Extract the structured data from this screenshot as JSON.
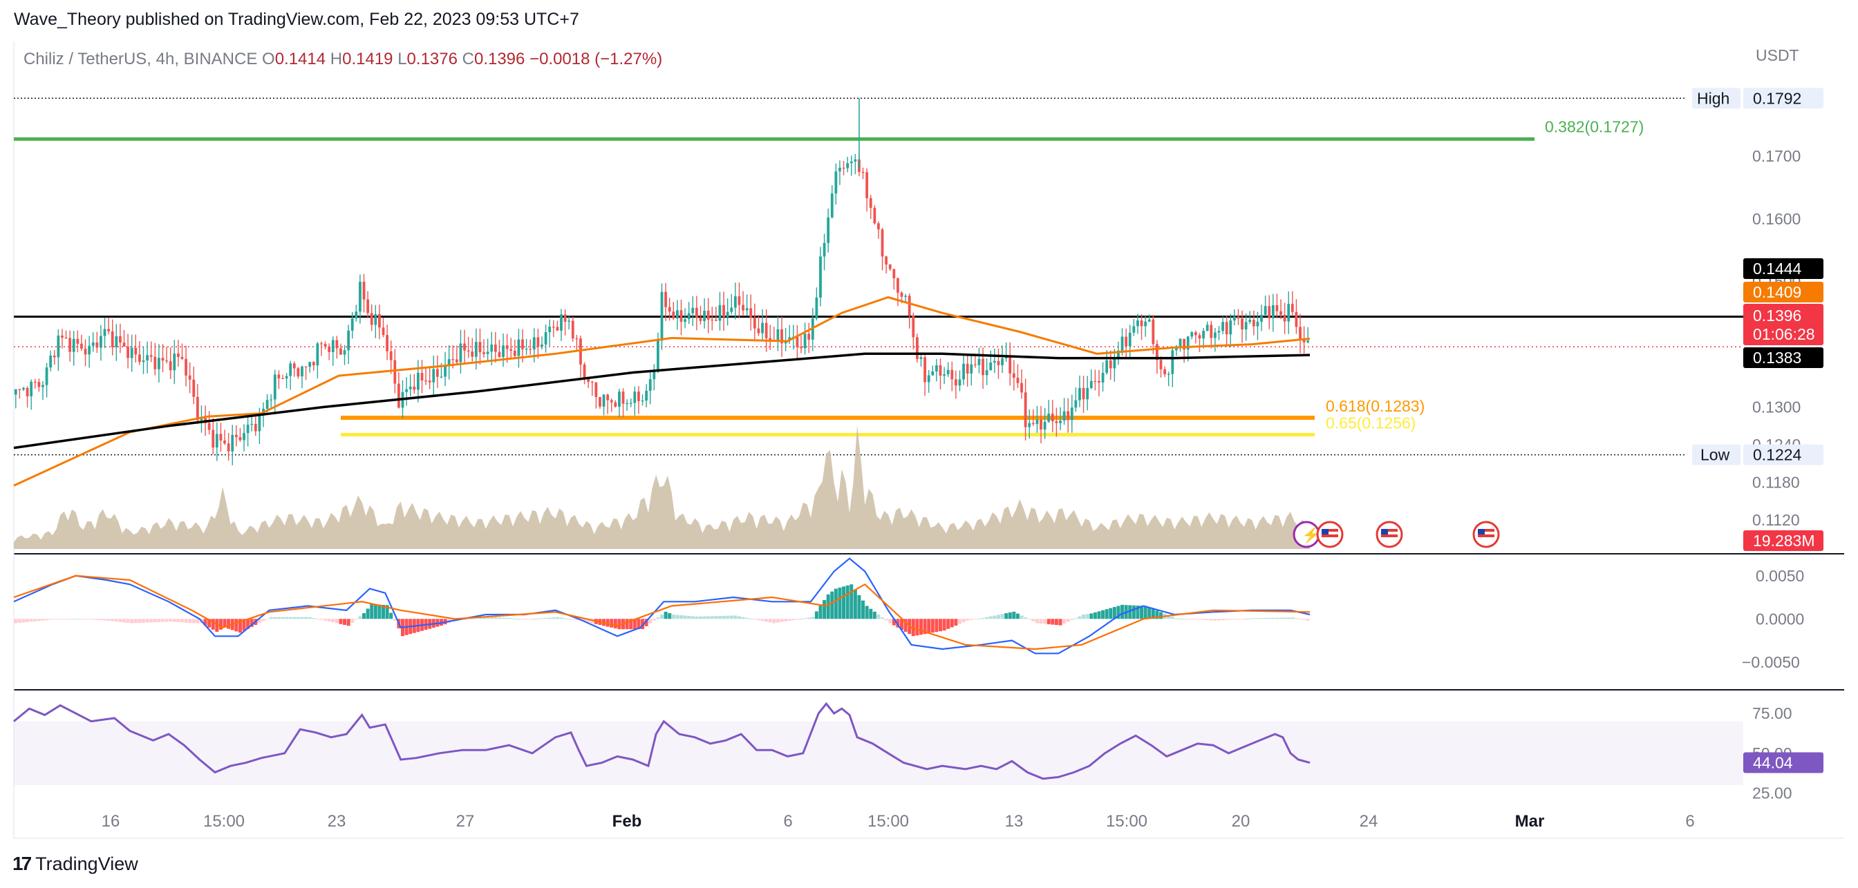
{
  "header": {
    "published": "Wave_Theory published on TradingView.com, Feb 22, 2023 09:53 UTC+7"
  },
  "legend": {
    "symbol": "Chiliz / TetherUS, 4h, BINANCE",
    "o_label": "O",
    "o": "0.1414",
    "h_label": "H",
    "h": "0.1419",
    "l_label": "L",
    "l": "0.1376",
    "c_label": "C",
    "c": "0.1396",
    "change": "−0.0018 (−1.27%)"
  },
  "footer": {
    "brand": "TradingView",
    "logo_mark": "17"
  },
  "colors": {
    "up": "#26a69a",
    "down": "#ef5350",
    "ema_fast": "#f57c00",
    "ema_slow": "#000000",
    "fib_382": "#4caf50",
    "fib_618": "#ff9800",
    "fib_65": "#ffeb3b",
    "macd_line": "#2962ff",
    "signal_line": "#ff6d00",
    "rsi": "#7e57c2",
    "vol_up": "#a5d6a7",
    "vol_down": "#f8a4a4",
    "price_tag": "#f23645"
  },
  "chart_data": [
    {
      "type": "candlestick",
      "pane": "price",
      "currency": "USDT",
      "y_ticks": [
        "0.1792",
        "0.1700",
        "0.1600",
        "0.1500",
        "0.1444",
        "0.1409",
        "0.1396",
        "0.1383",
        "0.1300",
        "0.1240",
        "0.1224",
        "0.1180",
        "0.1120"
      ],
      "y_range": [
        0.1085,
        0.18
      ],
      "x_labels": [
        "16",
        "15:00",
        "23",
        "27",
        "Feb",
        "6",
        "15:00",
        "13",
        "15:00",
        "20",
        "24",
        "Mar",
        "6"
      ],
      "trend": [
        [
          0,
          0.132
        ],
        [
          8,
          0.134
        ],
        [
          12,
          0.141
        ],
        [
          20,
          0.139
        ],
        [
          24,
          0.142
        ],
        [
          32,
          0.138
        ],
        [
          40,
          0.137
        ],
        [
          44,
          0.138
        ],
        [
          48,
          0.129
        ],
        [
          52,
          0.125
        ],
        [
          56,
          0.124
        ],
        [
          60,
          0.126
        ],
        [
          64,
          0.128
        ],
        [
          68,
          0.134
        ],
        [
          72,
          0.136
        ],
        [
          76,
          0.136
        ],
        [
          80,
          0.14
        ],
        [
          86,
          0.139
        ],
        [
          90,
          0.149
        ],
        [
          92,
          0.145
        ],
        [
          96,
          0.142
        ],
        [
          100,
          0.131
        ],
        [
          104,
          0.134
        ],
        [
          110,
          0.135
        ],
        [
          116,
          0.139
        ],
        [
          122,
          0.139
        ],
        [
          128,
          0.139
        ],
        [
          136,
          0.14
        ],
        [
          140,
          0.143
        ],
        [
          144,
          0.144
        ],
        [
          148,
          0.135
        ],
        [
          152,
          0.131
        ],
        [
          156,
          0.131
        ],
        [
          160,
          0.131
        ],
        [
          164,
          0.132
        ],
        [
          166,
          0.136
        ],
        [
          168,
          0.147
        ],
        [
          172,
          0.144
        ],
        [
          176,
          0.145
        ],
        [
          180,
          0.144
        ],
        [
          184,
          0.145
        ],
        [
          188,
          0.147
        ],
        [
          192,
          0.143
        ],
        [
          196,
          0.141
        ],
        [
          200,
          0.141
        ],
        [
          204,
          0.14
        ],
        [
          206,
          0.141
        ],
        [
          208,
          0.148
        ],
        [
          210,
          0.157
        ],
        [
          212,
          0.164
        ],
        [
          214,
          0.169
        ],
        [
          216,
          0.168
        ],
        [
          218,
          0.17
        ],
        [
          220,
          0.166
        ],
        [
          222,
          0.162
        ],
        [
          224,
          0.157
        ],
        [
          226,
          0.153
        ],
        [
          228,
          0.15
        ],
        [
          230,
          0.148
        ],
        [
          232,
          0.145
        ],
        [
          234,
          0.138
        ],
        [
          236,
          0.135
        ],
        [
          240,
          0.136
        ],
        [
          244,
          0.134
        ],
        [
          248,
          0.137
        ],
        [
          252,
          0.136
        ],
        [
          256,
          0.138
        ],
        [
          260,
          0.134
        ],
        [
          262,
          0.128
        ],
        [
          264,
          0.127
        ],
        [
          268,
          0.128
        ],
        [
          272,
          0.128
        ],
        [
          276,
          0.132
        ],
        [
          280,
          0.134
        ],
        [
          284,
          0.137
        ],
        [
          288,
          0.141
        ],
        [
          292,
          0.144
        ],
        [
          294,
          0.143
        ],
        [
          296,
          0.138
        ],
        [
          298,
          0.134
        ],
        [
          300,
          0.139
        ],
        [
          304,
          0.141
        ],
        [
          308,
          0.142
        ],
        [
          312,
          0.142
        ],
        [
          316,
          0.144
        ],
        [
          320,
          0.143
        ],
        [
          324,
          0.145
        ],
        [
          326,
          0.146
        ],
        [
          328,
          0.144
        ],
        [
          330,
          0.146
        ],
        [
          332,
          0.143
        ],
        [
          334,
          0.14
        ],
        [
          335,
          0.1396
        ]
      ],
      "ema_fast": [
        [
          0,
          0.1175
        ],
        [
          30,
          0.126
        ],
        [
          50,
          0.1285
        ],
        [
          64,
          0.129
        ],
        [
          84,
          0.135
        ],
        [
          110,
          0.1365
        ],
        [
          140,
          0.1385
        ],
        [
          170,
          0.141
        ],
        [
          200,
          0.1405
        ],
        [
          214,
          0.145
        ],
        [
          226,
          0.1475
        ],
        [
          240,
          0.145
        ],
        [
          260,
          0.142
        ],
        [
          280,
          0.1385
        ],
        [
          300,
          0.1395
        ],
        [
          320,
          0.14
        ],
        [
          335,
          0.1409
        ]
      ],
      "ema_slow": [
        [
          0,
          0.1235
        ],
        [
          40,
          0.127
        ],
        [
          80,
          0.13
        ],
        [
          120,
          0.1325
        ],
        [
          160,
          0.1355
        ],
        [
          200,
          0.1375
        ],
        [
          220,
          0.1385
        ],
        [
          240,
          0.1385
        ],
        [
          270,
          0.1378
        ],
        [
          300,
          0.1378
        ],
        [
          335,
          0.1383
        ]
      ],
      "levels": [
        {
          "name": "High",
          "value": 0.1792,
          "label": "High",
          "value_text": "0.1792",
          "style": "dotted"
        },
        {
          "name": "Low",
          "value": 0.1224,
          "label": "Low",
          "value_text": "0.1224",
          "style": "dotted"
        },
        {
          "name": "resistance",
          "value": 0.1444,
          "value_text": "0.1444",
          "style": "solid"
        },
        {
          "name": "close",
          "value": 0.1396,
          "value_text": "0.1396",
          "countdown": "01:06:28",
          "style": "dotted"
        },
        {
          "name": "ema_fast",
          "value": 0.1409,
          "value_text": "0.1409"
        },
        {
          "name": "ema_slow",
          "value": 0.1383,
          "value_text": "0.1383"
        }
      ],
      "fib": [
        {
          "label": "0.382(0.1727)",
          "value": 0.1727
        },
        {
          "label": "0.618(0.1283)",
          "value": 0.1283
        },
        {
          "label": "0.65(0.1256)",
          "value": 0.1256
        }
      ]
    },
    {
      "type": "area",
      "pane": "volume",
      "value_text": "19.283M",
      "points": [
        [
          0,
          0.1
        ],
        [
          10,
          0.15
        ],
        [
          14,
          0.4
        ],
        [
          18,
          0.2
        ],
        [
          24,
          0.35
        ],
        [
          30,
          0.15
        ],
        [
          40,
          0.25
        ],
        [
          50,
          0.2
        ],
        [
          54,
          0.5
        ],
        [
          58,
          0.15
        ],
        [
          70,
          0.3
        ],
        [
          80,
          0.25
        ],
        [
          90,
          0.45
        ],
        [
          96,
          0.2
        ],
        [
          100,
          0.4
        ],
        [
          110,
          0.3
        ],
        [
          120,
          0.25
        ],
        [
          130,
          0.3
        ],
        [
          140,
          0.35
        ],
        [
          150,
          0.2
        ],
        [
          160,
          0.3
        ],
        [
          168,
          0.7
        ],
        [
          172,
          0.3
        ],
        [
          180,
          0.2
        ],
        [
          190,
          0.3
        ],
        [
          200,
          0.25
        ],
        [
          208,
          0.5
        ],
        [
          210,
          1.0
        ],
        [
          212,
          0.6
        ],
        [
          214,
          0.7
        ],
        [
          216,
          0.4
        ],
        [
          218,
          1.0
        ],
        [
          220,
          0.6
        ],
        [
          224,
          0.3
        ],
        [
          230,
          0.35
        ],
        [
          240,
          0.2
        ],
        [
          250,
          0.25
        ],
        [
          260,
          0.4
        ],
        [
          266,
          0.3
        ],
        [
          272,
          0.35
        ],
        [
          280,
          0.2
        ],
        [
          290,
          0.3
        ],
        [
          300,
          0.25
        ],
        [
          310,
          0.3
        ],
        [
          320,
          0.25
        ],
        [
          330,
          0.3
        ],
        [
          335,
          0.2
        ]
      ]
    },
    {
      "type": "line",
      "pane": "macd",
      "y_ticks": [
        "0.0050",
        "0.0000",
        "−0.0050"
      ],
      "y_range": [
        -0.0075,
        0.0065
      ],
      "macd": [
        [
          0,
          0.002
        ],
        [
          10,
          0.004
        ],
        [
          16,
          0.005
        ],
        [
          24,
          0.0045
        ],
        [
          30,
          0.004
        ],
        [
          40,
          0.002
        ],
        [
          48,
          0.0
        ],
        [
          52,
          -0.002
        ],
        [
          58,
          -0.002
        ],
        [
          66,
          0.001
        ],
        [
          76,
          0.0015
        ],
        [
          86,
          0.001
        ],
        [
          92,
          0.0035
        ],
        [
          96,
          0.003
        ],
        [
          100,
          -0.001
        ],
        [
          110,
          -0.0005
        ],
        [
          122,
          0.0005
        ],
        [
          132,
          0.0005
        ],
        [
          140,
          0.001
        ],
        [
          146,
          0.0
        ],
        [
          156,
          -0.002
        ],
        [
          162,
          -0.001
        ],
        [
          168,
          0.002
        ],
        [
          176,
          0.002
        ],
        [
          186,
          0.0025
        ],
        [
          196,
          0.002
        ],
        [
          206,
          0.002
        ],
        [
          212,
          0.0055
        ],
        [
          216,
          0.007
        ],
        [
          220,
          0.0055
        ],
        [
          226,
          0.001
        ],
        [
          232,
          -0.003
        ],
        [
          240,
          -0.0035
        ],
        [
          250,
          -0.003
        ],
        [
          258,
          -0.0025
        ],
        [
          264,
          -0.004
        ],
        [
          270,
          -0.004
        ],
        [
          278,
          -0.002
        ],
        [
          286,
          0.0005
        ],
        [
          292,
          0.0015
        ],
        [
          300,
          0.0005
        ],
        [
          310,
          0.0008
        ],
        [
          320,
          0.001
        ],
        [
          330,
          0.001
        ],
        [
          335,
          0.0005
        ]
      ],
      "signal": [
        [
          0,
          0.0025
        ],
        [
          16,
          0.005
        ],
        [
          30,
          0.0045
        ],
        [
          46,
          0.001
        ],
        [
          54,
          -0.001
        ],
        [
          66,
          0.0008
        ],
        [
          90,
          0.002
        ],
        [
          100,
          0.001
        ],
        [
          114,
          0.0
        ],
        [
          140,
          0.0008
        ],
        [
          156,
          -0.0008
        ],
        [
          170,
          0.0015
        ],
        [
          196,
          0.0025
        ],
        [
          210,
          0.0015
        ],
        [
          220,
          0.004
        ],
        [
          232,
          -0.001
        ],
        [
          246,
          -0.003
        ],
        [
          264,
          -0.0035
        ],
        [
          276,
          -0.003
        ],
        [
          292,
          0.0
        ],
        [
          310,
          0.001
        ],
        [
          335,
          0.0008
        ]
      ]
    },
    {
      "type": "line",
      "pane": "rsi",
      "y_ticks": [
        "75.00",
        "50.00",
        "25.00"
      ],
      "y_range": [
        20,
        85
      ],
      "value_text": "44.04",
      "band": [
        30,
        70
      ],
      "points": [
        [
          0,
          70
        ],
        [
          4,
          78
        ],
        [
          8,
          74
        ],
        [
          12,
          80
        ],
        [
          16,
          75
        ],
        [
          20,
          70
        ],
        [
          26,
          72
        ],
        [
          30,
          64
        ],
        [
          36,
          58
        ],
        [
          40,
          62
        ],
        [
          44,
          55
        ],
        [
          48,
          46
        ],
        [
          52,
          38
        ],
        [
          56,
          42
        ],
        [
          60,
          44
        ],
        [
          64,
          47
        ],
        [
          70,
          50
        ],
        [
          74,
          65
        ],
        [
          78,
          63
        ],
        [
          82,
          60
        ],
        [
          86,
          62
        ],
        [
          90,
          74
        ],
        [
          92,
          66
        ],
        [
          96,
          68
        ],
        [
          100,
          46
        ],
        [
          104,
          47
        ],
        [
          110,
          50
        ],
        [
          116,
          52
        ],
        [
          122,
          52
        ],
        [
          128,
          55
        ],
        [
          134,
          50
        ],
        [
          140,
          60
        ],
        [
          144,
          63
        ],
        [
          146,
          52
        ],
        [
          148,
          42
        ],
        [
          152,
          44
        ],
        [
          156,
          48
        ],
        [
          160,
          46
        ],
        [
          164,
          42
        ],
        [
          166,
          62
        ],
        [
          168,
          70
        ],
        [
          172,
          62
        ],
        [
          176,
          60
        ],
        [
          180,
          56
        ],
        [
          184,
          58
        ],
        [
          188,
          62
        ],
        [
          192,
          52
        ],
        [
          196,
          52
        ],
        [
          200,
          48
        ],
        [
          204,
          50
        ],
        [
          208,
          75
        ],
        [
          210,
          81
        ],
        [
          212,
          75
        ],
        [
          214,
          78
        ],
        [
          216,
          74
        ],
        [
          218,
          60
        ],
        [
          222,
          56
        ],
        [
          226,
          50
        ],
        [
          230,
          44
        ],
        [
          236,
          40
        ],
        [
          240,
          42
        ],
        [
          246,
          40
        ],
        [
          250,
          42
        ],
        [
          254,
          40
        ],
        [
          258,
          45
        ],
        [
          262,
          38
        ],
        [
          266,
          34
        ],
        [
          270,
          35
        ],
        [
          274,
          38
        ],
        [
          278,
          42
        ],
        [
          282,
          50
        ],
        [
          286,
          56
        ],
        [
          290,
          61
        ],
        [
          294,
          55
        ],
        [
          298,
          48
        ],
        [
          302,
          52
        ],
        [
          306,
          56
        ],
        [
          310,
          55
        ],
        [
          314,
          50
        ],
        [
          318,
          54
        ],
        [
          322,
          58
        ],
        [
          326,
          62
        ],
        [
          328,
          60
        ],
        [
          330,
          50
        ],
        [
          332,
          46
        ],
        [
          335,
          44
        ]
      ]
    }
  ]
}
